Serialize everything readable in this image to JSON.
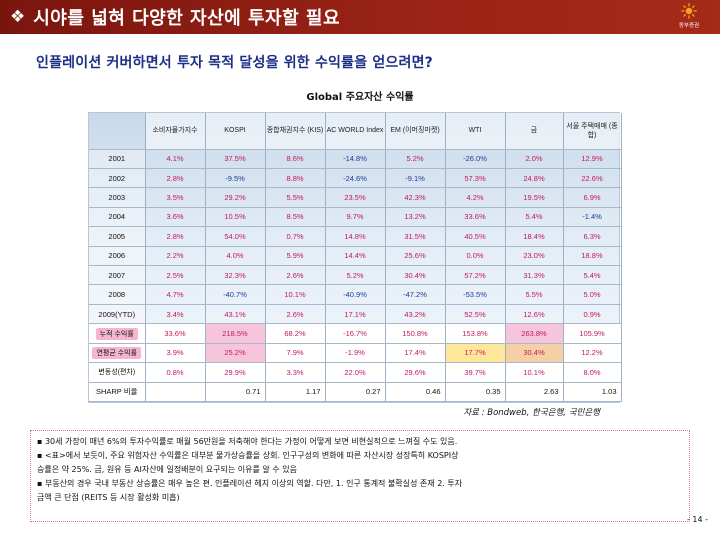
{
  "header": {
    "bullet": "❖",
    "title": "시야를 넓혀 다양한 자산에 투자할 필요",
    "logo_text": "동부증권"
  },
  "subtitle": "인플레이션 커버하면서 투자 목적 달성을 위한 수익률을 얻으려면?",
  "chart_title": "Global 주요자산 수익률",
  "table": {
    "columns": [
      "소비자물가지수",
      "KOSPI",
      "종합채권지수 (KIS)",
      "AC WORLD Index",
      "EM (이머징마켓)",
      "WTI",
      "금",
      "서울 주택매매 (종합)"
    ],
    "rows": [
      {
        "label": "2001",
        "values": [
          "4.1%",
          "37.5%",
          "8.6%",
          "-14.8%",
          "5.2%",
          "-26.0%",
          "2.0%",
          "12.9%"
        ]
      },
      {
        "label": "2002",
        "values": [
          "2.8%",
          "-9.5%",
          "8.8%",
          "-24.6%",
          "-9.1%",
          "57.3%",
          "24.8%",
          "22.6%"
        ]
      },
      {
        "label": "2003",
        "values": [
          "3.5%",
          "29.2%",
          "5.5%",
          "23.5%",
          "42.3%",
          "4.2%",
          "19.5%",
          "6.9%"
        ]
      },
      {
        "label": "2004",
        "values": [
          "3.6%",
          "10.5%",
          "8.5%",
          "9.7%",
          "13.2%",
          "33.6%",
          "5.4%",
          "-1.4%"
        ]
      },
      {
        "label": "2005",
        "values": [
          "2.8%",
          "54.0%",
          "0.7%",
          "14.8%",
          "31.5%",
          "40.5%",
          "18.4%",
          "6.3%"
        ]
      },
      {
        "label": "2006",
        "values": [
          "2.2%",
          "4.0%",
          "5.9%",
          "14.4%",
          "25.6%",
          "0.0%",
          "23.0%",
          "18.8%"
        ]
      },
      {
        "label": "2007",
        "values": [
          "2.5%",
          "32.3%",
          "2.6%",
          "5.2%",
          "30.4%",
          "57.2%",
          "31.3%",
          "5.4%"
        ]
      },
      {
        "label": "2008",
        "values": [
          "4.7%",
          "-40.7%",
          "10.1%",
          "-40.9%",
          "-47.2%",
          "-53.5%",
          "5.5%",
          "5.0%"
        ]
      },
      {
        "label": "2009(YTD)",
        "values": [
          "3.4%",
          "43.1%",
          "2.6%",
          "17.1%",
          "43.2%",
          "52.5%",
          "12.6%",
          "0.9%"
        ]
      }
    ],
    "summary_rows": [
      {
        "label": "누적 수익률",
        "values": [
          "33.6%",
          "218.5%",
          "68.2%",
          "-16.7%",
          "150.8%",
          "153.8%",
          "263.8%",
          "105.9%"
        ]
      },
      {
        "label": "연평균 수익률",
        "values": [
          "3.9%",
          "25.2%",
          "7.9%",
          "-1.9%",
          "17.4%",
          "17.7%",
          "30.4%",
          "12.2%"
        ]
      },
      {
        "label": "변동성(편차)",
        "values": [
          "0.8%",
          "29.9%",
          "3.3%",
          "22.0%",
          "29.6%",
          "39.7%",
          "10.1%",
          "8.0%"
        ]
      }
    ],
    "sharpe_row": {
      "label": "SHARP 비율",
      "values": [
        "",
        "0.71",
        "1.17",
        "0.27",
        "0.46",
        "0.35",
        "2.63",
        "1.03"
      ]
    }
  },
  "source": "자료 : Bondweb, 한국은행, 국민은행",
  "notes": [
    "▪ 30세 가장이 매년 6%의 투자수익률로 매월 56만원을 저축해야 한다는 가정이 어떻게 보면 비현실적으로 느껴질 수도 있음.",
    "▪ <표>에서 보듯이, 주요 위험자산 수익률은 대부분 물가상승률을 상회. 인구구성의 변화에 따른 자산시장 성장특히 KOSPI상",
    "승률은 약 25%. 금, 원유 등 AI자산에 일정배분이 요구되는 이유를 알 수 있음",
    "▪ 부동산의 경우 국내 부동산 상승률은 매우 높은 편. 인플레이션 헤지 이상의 역할. 다만, 1. 인구 통계적 불확실성 존재 2. 투자",
    "금액 큰 단점 (REITS 등 시장 활성화 미흡)"
  ],
  "page_number": "- 14 -",
  "colors": {
    "title_bar": "#8b1a12",
    "subtitle": "#1c2f86",
    "positive": "#c2185b",
    "negative": "#1a3d9a"
  }
}
